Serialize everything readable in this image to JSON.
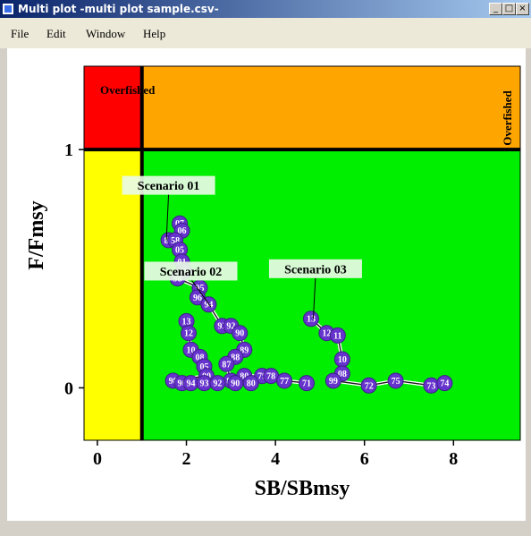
{
  "window": {
    "title": "Multi plot -multi plot sample.csv-",
    "minimize_label": "_",
    "restore_label": "□",
    "close_label": "×"
  },
  "menu": {
    "items": [
      {
        "id": "file",
        "label": "File"
      },
      {
        "id": "edit",
        "label": "Edit"
      },
      {
        "id": "window",
        "label": "Window"
      },
      {
        "id": "help",
        "label": "Help"
      }
    ]
  },
  "chart_data": {
    "type": "scatter",
    "xlabel": "SB/SBmsy",
    "ylabel": "F/Fmsy",
    "xlim": [
      -0.3,
      9.5
    ],
    "ylim": [
      -0.22,
      1.35
    ],
    "x_ticks": [
      0,
      2,
      4,
      6,
      8
    ],
    "y_ticks": [
      0,
      1
    ],
    "reference_lines": {
      "x": 1,
      "y": 1
    },
    "quadrants": {
      "top_left_color": "#ff0000",
      "top_right_color": "#ffa500",
      "bottom_left_color": "#ffff00",
      "bottom_right_color": "#00ee00"
    },
    "quadrant_labels": {
      "top_left": "Overfished",
      "top_right": "Overfished"
    },
    "point_color": "#6633cc",
    "path_color": "#1a1a1a",
    "scenario_labels": [
      {
        "text": "Scenario 01",
        "x": 1.6,
        "y": 0.85,
        "anchor_x": 1.55,
        "anchor_y": 0.62
      },
      {
        "text": "Scenario 02",
        "x": 2.1,
        "y": 0.49,
        "anchor_x": 2.55,
        "anchor_y": 0.34
      },
      {
        "text": "Scenario 03",
        "x": 4.9,
        "y": 0.5,
        "anchor_x": 4.85,
        "anchor_y": 0.29
      }
    ],
    "series": [
      {
        "points": [
          {
            "x": 1.85,
            "y": 0.69,
            "label": "07"
          },
          {
            "x": 1.9,
            "y": 0.66,
            "label": "06"
          },
          {
            "x": 1.6,
            "y": 0.62,
            "label": "85"
          },
          {
            "x": 1.75,
            "y": 0.62,
            "label": "58"
          },
          {
            "x": 1.85,
            "y": 0.58,
            "label": "05"
          },
          {
            "x": 1.9,
            "y": 0.53,
            "label": "01"
          },
          {
            "x": 1.95,
            "y": 0.49,
            "label": "00"
          },
          {
            "x": 1.8,
            "y": 0.46,
            "label": "98"
          },
          {
            "x": 2.3,
            "y": 0.42,
            "label": "95"
          },
          {
            "x": 2.25,
            "y": 0.38,
            "label": "96"
          },
          {
            "x": 2.5,
            "y": 0.35,
            "label": "94"
          },
          {
            "x": 2.8,
            "y": 0.26,
            "label": "93"
          },
          {
            "x": 3.0,
            "y": 0.26,
            "label": "92"
          },
          {
            "x": 3.2,
            "y": 0.23,
            "label": "90"
          },
          {
            "x": 3.3,
            "y": 0.16,
            "label": "89"
          },
          {
            "x": 3.1,
            "y": 0.13,
            "label": "88"
          },
          {
            "x": 2.9,
            "y": 0.1,
            "label": "87"
          },
          {
            "x": 3.0,
            "y": 0.03,
            "label": "86"
          },
          {
            "x": 3.3,
            "y": 0.05,
            "label": "80"
          },
          {
            "x": 3.7,
            "y": 0.05,
            "label": "79"
          },
          {
            "x": 3.9,
            "y": 0.05,
            "label": "78"
          },
          {
            "x": 4.2,
            "y": 0.03,
            "label": "77"
          },
          {
            "x": 4.7,
            "y": 0.02,
            "label": "71"
          }
        ]
      },
      {
        "points": [
          {
            "x": 2.0,
            "y": 0.28,
            "label": "13"
          },
          {
            "x": 2.05,
            "y": 0.23,
            "label": "12"
          },
          {
            "x": 2.1,
            "y": 0.16,
            "label": "10"
          },
          {
            "x": 2.3,
            "y": 0.13,
            "label": "08"
          },
          {
            "x": 2.4,
            "y": 0.09,
            "label": "05"
          },
          {
            "x": 2.45,
            "y": 0.05,
            "label": "00"
          },
          {
            "x": 1.7,
            "y": 0.03,
            "label": "98"
          },
          {
            "x": 1.9,
            "y": 0.02,
            "label": "96"
          },
          {
            "x": 2.1,
            "y": 0.02,
            "label": "94"
          },
          {
            "x": 2.4,
            "y": 0.02,
            "label": "93"
          },
          {
            "x": 2.7,
            "y": 0.02,
            "label": "92"
          },
          {
            "x": 3.1,
            "y": 0.02,
            "label": "90"
          },
          {
            "x": 3.45,
            "y": 0.02,
            "label": "80"
          }
        ]
      },
      {
        "points": [
          {
            "x": 4.8,
            "y": 0.29,
            "label": "13"
          },
          {
            "x": 5.15,
            "y": 0.23,
            "label": "12"
          },
          {
            "x": 5.4,
            "y": 0.22,
            "label": "11"
          },
          {
            "x": 5.5,
            "y": 0.12,
            "label": "10"
          },
          {
            "x": 5.5,
            "y": 0.06,
            "label": "08"
          },
          {
            "x": 5.3,
            "y": 0.03,
            "label": "99"
          },
          {
            "x": 6.1,
            "y": 0.01,
            "label": "72"
          },
          {
            "x": 6.7,
            "y": 0.03,
            "label": "75"
          },
          {
            "x": 7.5,
            "y": 0.01,
            "label": "73"
          },
          {
            "x": 7.8,
            "y": 0.02,
            "label": "74"
          }
        ]
      }
    ]
  }
}
